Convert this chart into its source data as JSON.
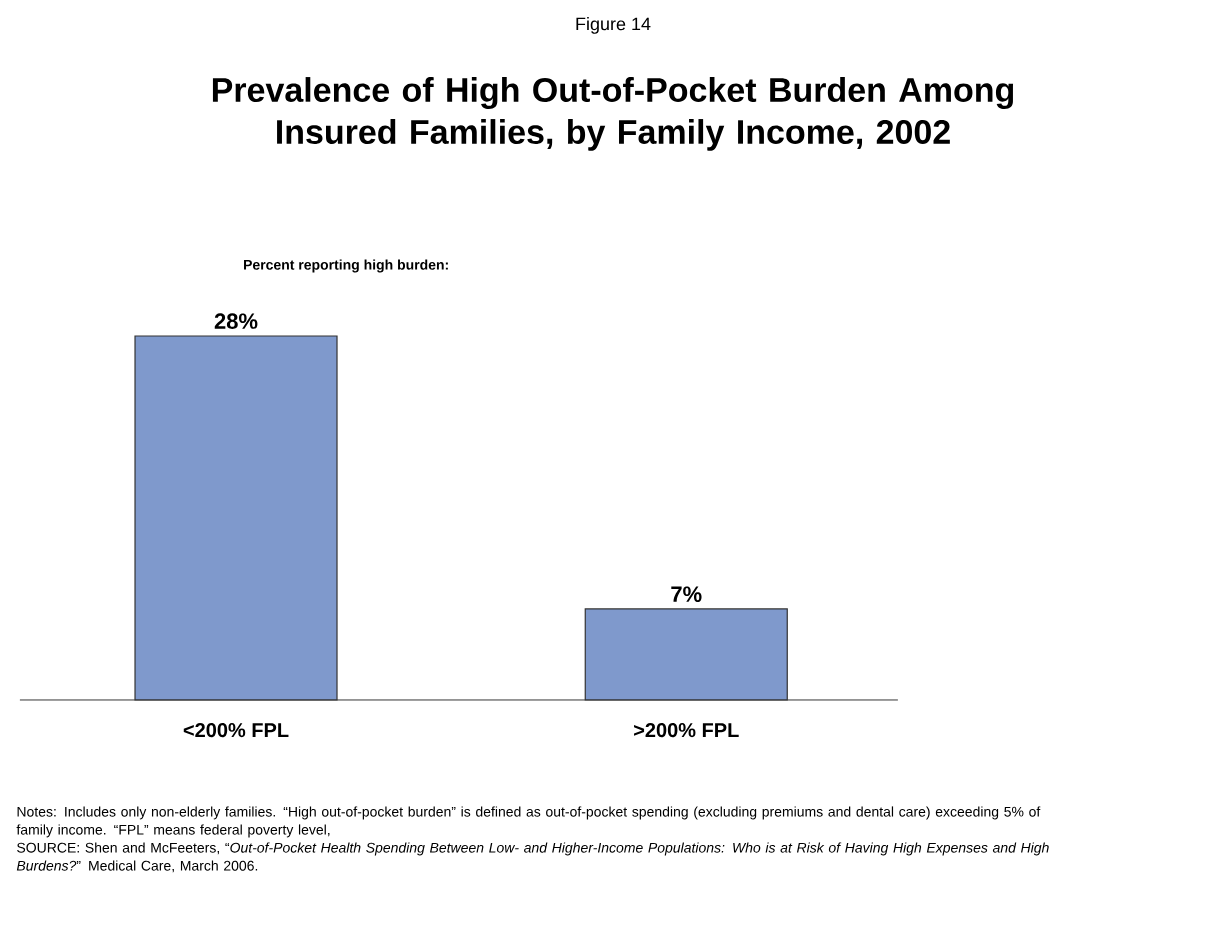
{
  "chart_data": {
    "type": "bar",
    "title": "Prevalence of High Out-of-Pocket Burden Among Insured Families, by Family Income, 2002",
    "ylabel": "Percent reporting high burden:",
    "categories": [
      "<200% FPL",
      ">200% FPL"
    ],
    "values": [
      28,
      7
    ],
    "value_labels": [
      "28%",
      "7%"
    ],
    "color": "#7f99cc",
    "annotations": [
      "Figure 14",
      "Notes:  Includes only non-elderly families. “High out-of-pocket burden” is defined as out-of-pocket spending (excluding premiums and dental care)  exceeding 5% of family income. “FPL” means federal poverty level,",
      "SOURCE: Shen and McFeeters, “*Out-of-Pocket Health Spending Between Low- and Higher-Income Populations: Who is at Risk of Having High Expenses and High Burdens?*” Medical Care, March 2006."
    ]
  }
}
